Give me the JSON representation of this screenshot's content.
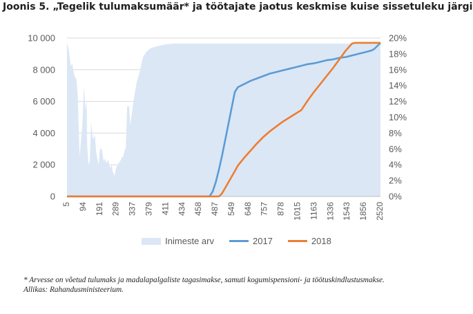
{
  "figure": {
    "title": "Joonis 5. „Tegelik tulumaksumäär* ja töötajate jaotus keskmise kuise sissetuleku järgi“",
    "footnote": "* Arvesse on võetud tulumaks ja madalapalgaliste tagasimakse, samuti kogumispensioni- ja töötuskindlustusmakse.",
    "source": "Allikas: Rahandusministeerium."
  },
  "chart_data": {
    "type": "area",
    "title": "",
    "xlabel": "",
    "ylabel": "",
    "x_tick_labels": [
      "5",
      "94",
      "191",
      "289",
      "337",
      "379",
      "411",
      "434",
      "458",
      "487",
      "549",
      "648",
      "757",
      "878",
      "1015",
      "1163",
      "1336",
      "1543",
      "1856",
      "2520"
    ],
    "y_left": {
      "min": 0,
      "max": 10000,
      "step": 2000,
      "tick_labels": [
        "0",
        "2 000",
        "4 000",
        "6 000",
        "8 000",
        "10 000"
      ]
    },
    "y_right": {
      "min": 0,
      "max": 0.2,
      "step": 0.02,
      "tick_labels": [
        "0%",
        "2%",
        "4%",
        "6%",
        "8%",
        "10%",
        "12%",
        "14%",
        "16%",
        "18%",
        "20%"
      ]
    },
    "grid": true,
    "legend_position": "bottom",
    "series": [
      {
        "name": "Inimeste arv",
        "kind": "area",
        "axis": "left",
        "color": "#dbe7f5",
        "x": [
          0,
          0.6,
          1.2,
          1.6,
          2.4,
          3.0,
          3.4,
          4.0,
          4.4,
          4.8,
          5.4,
          5.8,
          6.2,
          6.4,
          6.8,
          7.2,
          7.6,
          8.2,
          8.8,
          9.2,
          9.6,
          10,
          10.4,
          11,
          11.6,
          12,
          12.4,
          13,
          13.6,
          14.2,
          14.4,
          15,
          15.5,
          16,
          17,
          17.4,
          17.8,
          18.2,
          18.6,
          19.0,
          19.6,
          20,
          21,
          22,
          23,
          24,
          25,
          26,
          27,
          28,
          29,
          30,
          31,
          32,
          33,
          34,
          35,
          36,
          37,
          38,
          39,
          40,
          41,
          42,
          43,
          44,
          45,
          46,
          47,
          48,
          49,
          50,
          51,
          52,
          53,
          54,
          55,
          56,
          57,
          58,
          59,
          60,
          61,
          62,
          63,
          64,
          65,
          66,
          67,
          68,
          69,
          70,
          71,
          72,
          73,
          74,
          75,
          76,
          77,
          78,
          79,
          80,
          81,
          82,
          83,
          84,
          85,
          86,
          87,
          88,
          89,
          90,
          91,
          92,
          93,
          94,
          95,
          96,
          97,
          98,
          99
        ],
        "y": [
          9700,
          9200,
          8200,
          8400,
          7600,
          7400,
          6300,
          2500,
          3500,
          4300,
          7000,
          5500,
          6000,
          3200,
          2000,
          2200,
          4700,
          3600,
          3900,
          2800,
          2400,
          2000,
          3000,
          3000,
          2200,
          2400,
          2100,
          2300,
          1800,
          2000,
          1600,
          1300,
          1800,
          2000,
          2300,
          2500,
          2500,
          2900,
          3100,
          5700,
          5700,
          4500,
          6000,
          7200,
          7900,
          8800,
          9100,
          9300,
          9400,
          9450,
          9500,
          9550,
          9600,
          9620,
          9640,
          9650,
          9650,
          9650,
          9650,
          9650,
          9650,
          9650,
          9650,
          9650,
          9650,
          9650,
          9650,
          9650,
          9650,
          9650,
          9650,
          9650,
          9650,
          9650,
          9650,
          9650,
          9650,
          9650,
          9650,
          9650,
          9650,
          9650,
          9650,
          9650,
          9650,
          9650,
          9650,
          9650,
          9650,
          9650,
          9650,
          9650,
          9650,
          9650,
          9650,
          9650,
          9650,
          9650,
          9650,
          9650,
          9650,
          9650,
          9650,
          9650,
          9650,
          9650,
          9650,
          9650,
          9650,
          9650,
          9650,
          9650,
          9650,
          9650,
          9650,
          9650,
          9650,
          9650,
          9650,
          9650,
          9650
        ]
      },
      {
        "name": "2017",
        "kind": "line",
        "axis": "right",
        "color": "#5b9bd5",
        "x": [
          0,
          45,
          46,
          47,
          48,
          49,
          50,
          51,
          52,
          53,
          54,
          56,
          58,
          60,
          62,
          64,
          66,
          68,
          70,
          72,
          74,
          76,
          78,
          80,
          82,
          84,
          86,
          88,
          90,
          92,
          94,
          96,
          97,
          98,
          99
        ],
        "y": [
          0,
          0,
          0.006,
          0.018,
          0.034,
          0.052,
          0.072,
          0.092,
          0.112,
          0.132,
          0.138,
          0.142,
          0.146,
          0.149,
          0.152,
          0.155,
          0.157,
          0.159,
          0.161,
          0.163,
          0.165,
          0.167,
          0.168,
          0.17,
          0.172,
          0.173,
          0.175,
          0.176,
          0.178,
          0.18,
          0.182,
          0.184,
          0.186,
          0.19,
          0.194
        ]
      },
      {
        "name": "2018",
        "kind": "line",
        "axis": "right",
        "color": "#ed7d31",
        "x": [
          0,
          48,
          49,
          50,
          51,
          52,
          53,
          54,
          55,
          56,
          58,
          60,
          62,
          64,
          66,
          68,
          70,
          72,
          74,
          76,
          78,
          80,
          82,
          84,
          86,
          88,
          90,
          91,
          92,
          93,
          94,
          96,
          98,
          99
        ],
        "y": [
          0,
          0,
          0.004,
          0.011,
          0.018,
          0.025,
          0.032,
          0.039,
          0.044,
          0.049,
          0.058,
          0.067,
          0.075,
          0.082,
          0.088,
          0.094,
          0.099,
          0.104,
          0.109,
          0.121,
          0.132,
          0.142,
          0.152,
          0.162,
          0.173,
          0.184,
          0.193,
          0.194,
          0.194,
          0.194,
          0.194,
          0.194,
          0.194,
          0.194
        ]
      }
    ]
  }
}
